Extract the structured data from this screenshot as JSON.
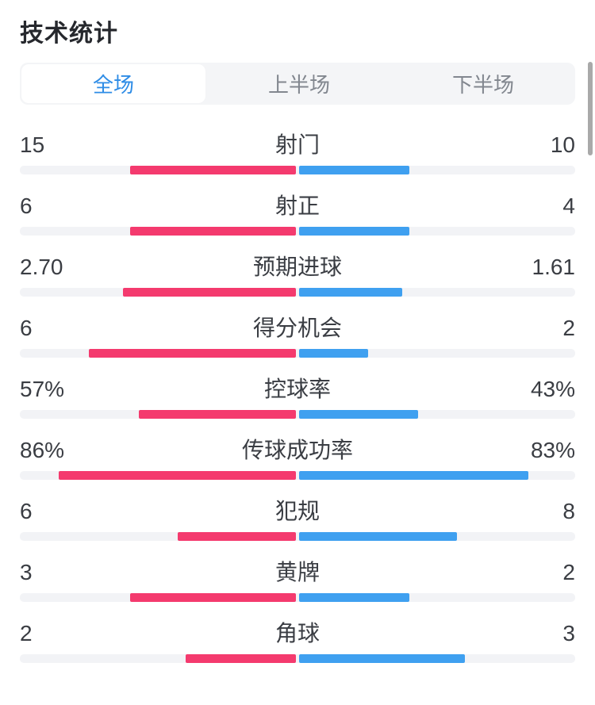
{
  "title": "技术统计",
  "tabs": [
    {
      "label": "全场",
      "active": true
    },
    {
      "label": "上半场",
      "active": false
    },
    {
      "label": "下半场",
      "active": false
    }
  ],
  "colors": {
    "home_bar": "#f43a6e",
    "away_bar": "#3fa0f0",
    "track": "#f2f3f6",
    "tabs_bg": "#f4f5f7",
    "tab_active_text": "#2e8ce6",
    "tab_inactive_text": "#82878f",
    "title_text": "#26282d",
    "stat_text": "#3a3d43",
    "scrollbar": "#a9a9a9"
  },
  "chart_data": {
    "type": "bar",
    "title": "技术统计",
    "legend_position": "none",
    "layout": "paired horizontal bars from center; left=home (red), right=away (blue); bar length = value/denominator of half track",
    "series": [
      {
        "name": "home",
        "values": [
          15,
          6,
          2.7,
          6,
          57,
          86,
          6,
          3,
          2
        ]
      },
      {
        "name": "away",
        "values": [
          10,
          4,
          1.61,
          2,
          43,
          83,
          8,
          2,
          3
        ]
      }
    ],
    "categories": [
      "射门",
      "射正",
      "预期进球",
      "得分机会",
      "控球率",
      "传球成功率",
      "犯规",
      "黄牌",
      "角球"
    ]
  },
  "stats": {
    "rows": [
      {
        "label": "射门",
        "home": 15,
        "away": 10,
        "home_display": "15",
        "away_display": "10",
        "unit": "count"
      },
      {
        "label": "射正",
        "home": 6,
        "away": 4,
        "home_display": "6",
        "away_display": "4",
        "unit": "count"
      },
      {
        "label": "预期进球",
        "home": 2.7,
        "away": 1.61,
        "home_display": "2.70",
        "away_display": "1.61",
        "unit": "count"
      },
      {
        "label": "得分机会",
        "home": 6,
        "away": 2,
        "home_display": "6",
        "away_display": "2",
        "unit": "count"
      },
      {
        "label": "控球率",
        "home": 57,
        "away": 43,
        "home_display": "57%",
        "away_display": "43%",
        "unit": "percent"
      },
      {
        "label": "传球成功率",
        "home": 86,
        "away": 83,
        "home_display": "86%",
        "away_display": "83%",
        "unit": "percent"
      },
      {
        "label": "犯规",
        "home": 6,
        "away": 8,
        "home_display": "6",
        "away_display": "8",
        "unit": "count"
      },
      {
        "label": "黄牌",
        "home": 3,
        "away": 2,
        "home_display": "3",
        "away_display": "2",
        "unit": "count"
      },
      {
        "label": "角球",
        "home": 2,
        "away": 3,
        "home_display": "2",
        "away_display": "3",
        "unit": "count"
      }
    ]
  }
}
